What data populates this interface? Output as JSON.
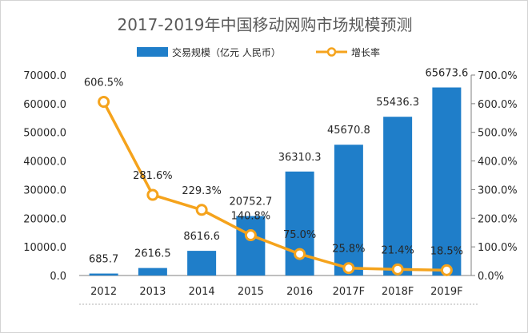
{
  "chart_data": {
    "type": "bar",
    "title": "2017-2019年中国移动网购市场规模预测",
    "categories": [
      "2012",
      "2013",
      "2014",
      "2015",
      "2016",
      "2017F",
      "2018F",
      "2019F"
    ],
    "series": [
      {
        "name": "交易规模（亿元 人民币）",
        "type": "bar",
        "axis": "left",
        "color": "#1f7ec9",
        "values": [
          685.7,
          2616.5,
          8616.6,
          20752.7,
          36310.3,
          45670.8,
          55436.3,
          65673.6
        ],
        "labels": [
          "685.7",
          "2616.5",
          "8616.6",
          "20752.7",
          "36310.3",
          "45670.8",
          "55436.3",
          "65673.6"
        ]
      },
      {
        "name": "增长率",
        "type": "line",
        "axis": "right",
        "color": "#f5a31c",
        "values": [
          606.5,
          281.6,
          229.3,
          140.8,
          75.0,
          25.8,
          21.4,
          18.5
        ],
        "labels": [
          "606.5%",
          "281.6%",
          "229.3%",
          "140.8%",
          "75.0%",
          "25.8%",
          "21.4%",
          "18.5%"
        ]
      }
    ],
    "y_left": {
      "ylim": [
        0,
        70000
      ],
      "ticks": [
        "0.0",
        "10000.0",
        "20000.0",
        "30000.0",
        "40000.0",
        "50000.0",
        "60000.0",
        "70000.0"
      ]
    },
    "y_right": {
      "ylim": [
        0,
        700
      ],
      "ticks": [
        "0.0%",
        "100.0%",
        "200.0%",
        "300.0%",
        "400.0%",
        "500.0%",
        "600.0%",
        "700.0%"
      ]
    },
    "legend_position": "top-center",
    "grid": false
  }
}
